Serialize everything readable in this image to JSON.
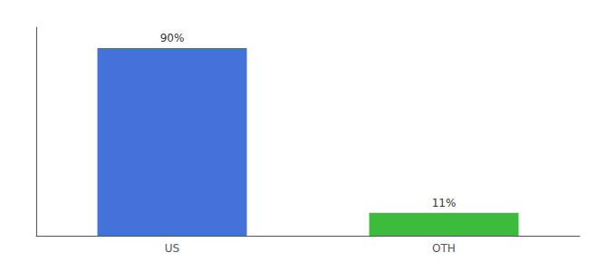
{
  "chart_data": {
    "type": "bar",
    "categories": [
      "US",
      "OTH"
    ],
    "values": [
      90,
      11
    ],
    "colors": [
      "#4472db",
      "#3dbb3d"
    ],
    "data_labels": true,
    "value_labels": [
      "90%",
      "11%"
    ],
    "ylim": [
      0,
      100
    ],
    "grid": false,
    "tick_labels": "x"
  }
}
